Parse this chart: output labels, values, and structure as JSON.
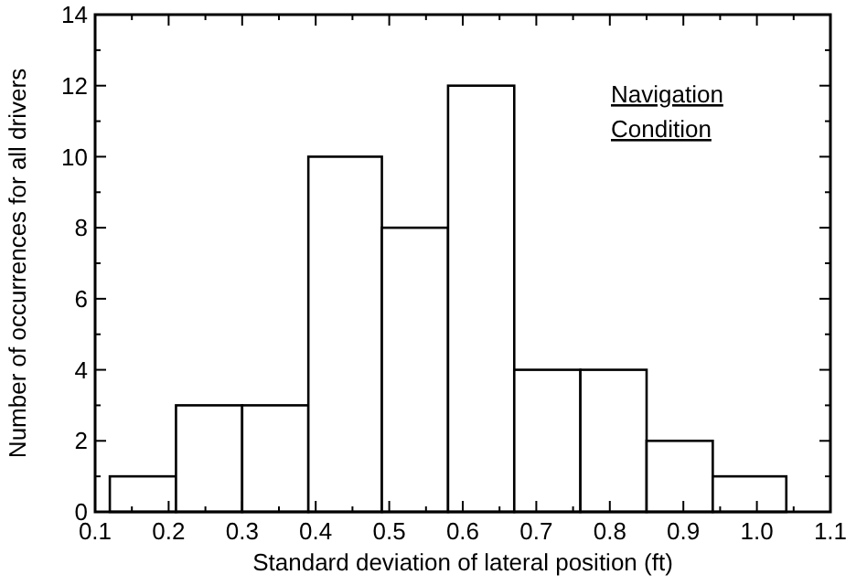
{
  "chart_data": {
    "type": "histogram",
    "xlabel": "Standard deviation of lateral position (ft)",
    "ylabel": "Number of occurrences for all drivers",
    "annotations": [
      "Navigation Condition"
    ],
    "bins": [
      0.12,
      0.21,
      0.3,
      0.39,
      0.49,
      0.58,
      0.67,
      0.76,
      0.85,
      0.94,
      1.04
    ],
    "values": [
      1,
      3,
      3,
      10,
      8,
      12,
      4,
      4,
      2,
      1
    ],
    "color": "#ffffff",
    "xlim": [
      0.1,
      1.1
    ],
    "xticks": [
      {
        "value": 0.1,
        "label": "0.1"
      },
      {
        "value": 0.2,
        "label": "0.2"
      },
      {
        "value": 0.3,
        "label": "0.3"
      },
      {
        "value": 0.4,
        "label": "0.4"
      },
      {
        "value": 0.5,
        "label": "0.5"
      },
      {
        "value": 0.6,
        "label": "0.6"
      },
      {
        "value": 0.7,
        "label": "0.7"
      },
      {
        "value": 0.8,
        "label": "0.8"
      },
      {
        "value": 0.9,
        "label": "0.9"
      },
      {
        "value": 1.0,
        "label": "1.0"
      },
      {
        "value": 1.1,
        "label": "1.1"
      }
    ],
    "ylim": [
      0,
      14
    ],
    "yticks": [
      0,
      2,
      4,
      6,
      8,
      10,
      12,
      14
    ],
    "grid": false
  }
}
